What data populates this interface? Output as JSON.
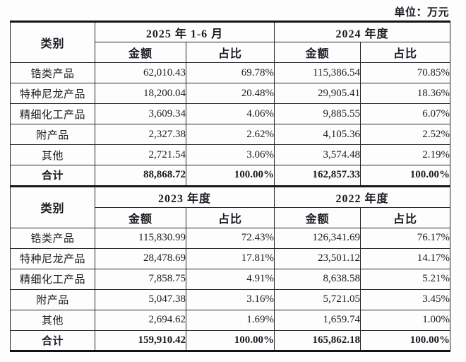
{
  "unit_label": "单位：万元",
  "colors": {
    "text": "#1b1b22",
    "border": "#26262c",
    "thick_rule": "#121216",
    "page_bg": "#fdfdfd"
  },
  "tables": [
    {
      "category_header": "类别",
      "period1": "2025 年 1-6 月",
      "period2": "2024 年度",
      "sub_headers": {
        "amount1": "金额",
        "share1": "占比",
        "amount2": "金额",
        "share2": "占比"
      },
      "rows": [
        {
          "category": "锆类产品",
          "amount1": "62,010.43",
          "share1": "69.78%",
          "amount2": "115,386.54",
          "share2": "70.85%",
          "is_total": false
        },
        {
          "category": "特种尼龙产品",
          "amount1": "18,200.04",
          "share1": "20.48%",
          "amount2": "29,905.41",
          "share2": "18.36%",
          "is_total": false
        },
        {
          "category": "精细化工产品",
          "amount1": "3,609.34",
          "share1": "4.06%",
          "amount2": "9,885.55",
          "share2": "6.07%",
          "is_total": false
        },
        {
          "category": "附产品",
          "amount1": "2,327.38",
          "share1": "2.62%",
          "amount2": "4,105.36",
          "share2": "2.52%",
          "is_total": false
        },
        {
          "category": "其他",
          "amount1": "2,721.54",
          "share1": "3.06%",
          "amount2": "3,574.48",
          "share2": "2.19%",
          "is_total": false
        },
        {
          "category": "合计",
          "amount1": "88,868.72",
          "share1": "100.00%",
          "amount2": "162,857.33",
          "share2": "100.00%",
          "is_total": true
        }
      ]
    },
    {
      "category_header": "类别",
      "period1": "2023 年度",
      "period2": "2022 年度",
      "sub_headers": {
        "amount1": "金额",
        "share1": "占比",
        "amount2": "金额",
        "share2": "占比"
      },
      "rows": [
        {
          "category": "锆类产品",
          "amount1": "115,830.99",
          "share1": "72.43%",
          "amount2": "126,341.69",
          "share2": "76.17%",
          "is_total": false
        },
        {
          "category": "特种尼龙产品",
          "amount1": "28,478.69",
          "share1": "17.81%",
          "amount2": "23,501.12",
          "share2": "14.17%",
          "is_total": false
        },
        {
          "category": "精细化工产品",
          "amount1": "7,858.75",
          "share1": "4.91%",
          "amount2": "8,638.58",
          "share2": "5.21%",
          "is_total": false
        },
        {
          "category": "附产品",
          "amount1": "5,047.38",
          "share1": "3.16%",
          "amount2": "5,721.05",
          "share2": "3.45%",
          "is_total": false
        },
        {
          "category": "其他",
          "amount1": "2,694.62",
          "share1": "1.69%",
          "amount2": "1,659.74",
          "share2": "1.00%",
          "is_total": false
        },
        {
          "category": "合计",
          "amount1": "159,910.42",
          "share1": "100.00%",
          "amount2": "165,862.18",
          "share2": "100.00%",
          "is_total": true
        }
      ]
    }
  ]
}
